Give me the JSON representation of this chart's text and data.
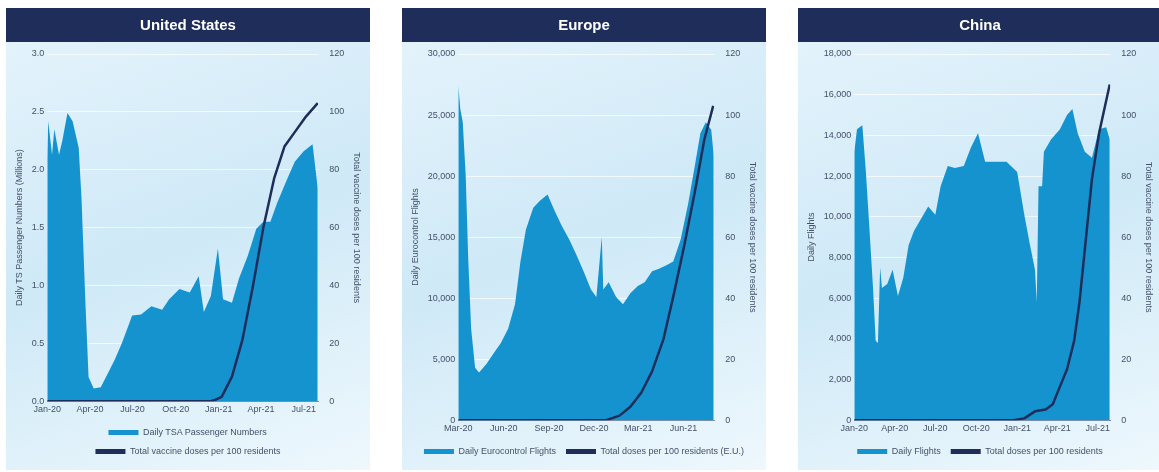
{
  "chart_data": [
    {
      "type": "area",
      "title": "United States",
      "ylabel": "Daily TS Passenger Numbers (Millions)",
      "y2label": "Total vaccine doses per 100 residents",
      "xlim": [
        "2020-01-01",
        "2021-08-01"
      ],
      "xticks": [
        {
          "value": "2020-01-01",
          "label": "Jan-20"
        },
        {
          "value": "2020-04-01",
          "label": "Apr-20"
        },
        {
          "value": "2020-07-01",
          "label": "Jul-20"
        },
        {
          "value": "2020-10-01",
          "label": "Oct-20"
        },
        {
          "value": "2021-01-01",
          "label": "Jan-21"
        },
        {
          "value": "2021-04-01",
          "label": "Apr-21"
        },
        {
          "value": "2021-07-01",
          "label": "Jul-21"
        }
      ],
      "ylim": [
        0,
        3
      ],
      "yticks": [
        {
          "value": 0,
          "label": "0.0"
        },
        {
          "value": 0.5,
          "label": "0.5"
        },
        {
          "value": 1,
          "label": "1.0"
        },
        {
          "value": 1.5,
          "label": "1.5"
        },
        {
          "value": 2,
          "label": "2.0"
        },
        {
          "value": 2.5,
          "label": "2.5"
        },
        {
          "value": 3,
          "label": "3.0"
        }
      ],
      "y2lim": [
        0,
        120
      ],
      "y2ticks": [
        0,
        20,
        40,
        60,
        80,
        100,
        120
      ],
      "grid": "y",
      "legend": "bottom",
      "series": [
        {
          "name": "Daily TSA Passenger Numbers",
          "color": "#1493cf",
          "x": [
            "2020-01-01",
            "2020-01-03",
            "2020-01-11",
            "2020-01-16",
            "2020-01-26",
            "2020-02-02",
            "2020-02-13",
            "2020-02-24",
            "2020-03-08",
            "2020-03-14",
            "2020-03-22",
            "2020-03-29",
            "2020-04-09",
            "2020-04-24",
            "2020-05-09",
            "2020-05-24",
            "2020-06-08",
            "2020-06-19",
            "2020-06-30",
            "2020-07-19",
            "2020-08-10",
            "2020-09-02",
            "2020-09-17",
            "2020-10-09",
            "2020-10-31",
            "2020-11-19",
            "2020-11-30",
            "2020-12-15",
            "2020-12-30",
            "2021-01-10",
            "2021-01-29",
            "2021-02-13",
            "2021-03-04",
            "2021-03-22",
            "2021-04-06",
            "2021-04-21",
            "2021-05-06",
            "2021-05-28",
            "2021-06-12",
            "2021-07-01",
            "2021-07-20",
            "2021-07-31"
          ],
          "values": [
            2.1,
            2.42,
            2.13,
            2.35,
            2.13,
            2.25,
            2.49,
            2.42,
            2.19,
            1.75,
            0.88,
            0.21,
            0.11,
            0.12,
            0.24,
            0.36,
            0.5,
            0.62,
            0.74,
            0.75,
            0.82,
            0.79,
            0.88,
            0.97,
            0.94,
            1.08,
            0.77,
            0.91,
            1.32,
            0.88,
            0.85,
            1.06,
            1.26,
            1.49,
            1.55,
            1.55,
            1.72,
            1.93,
            2.07,
            2.16,
            2.22,
            1.84
          ]
        },
        {
          "name": "Total vaccine doses per 100 residents",
          "type": "line",
          "axis": "y2",
          "color": "#1f2d5a",
          "x": [
            "2020-01-01",
            "2020-12-14",
            "2020-12-22",
            "2021-01-07",
            "2021-01-29",
            "2021-02-20",
            "2021-03-15",
            "2021-04-06",
            "2021-04-29",
            "2021-05-21",
            "2021-06-12",
            "2021-07-04",
            "2021-07-31"
          ],
          "values": [
            0,
            0,
            0.3,
            1.5,
            8.5,
            21,
            40,
            60,
            77,
            88,
            93,
            98,
            103
          ]
        }
      ]
    },
    {
      "type": "area",
      "title": "Europe",
      "ylabel": "Daily Eurocontrol Flights",
      "y2label": "Total vaccine doses per 100 residents",
      "xlim": [
        "2020-03-01",
        "2021-08-02"
      ],
      "xticks": [
        {
          "value": "2020-03-01",
          "label": "Mar-20"
        },
        {
          "value": "2020-06-01",
          "label": "Jun-20"
        },
        {
          "value": "2020-09-01",
          "label": "Sep-20"
        },
        {
          "value": "2020-12-01",
          "label": "Dec-20"
        },
        {
          "value": "2021-03-01",
          "label": "Mar-21"
        },
        {
          "value": "2021-06-01",
          "label": "Jun-21"
        }
      ],
      "ylim": [
        0,
        30000
      ],
      "yticks": [
        0,
        {
          "value": 5000,
          "label": "5,000"
        },
        {
          "value": 10000,
          "label": "10,000"
        },
        {
          "value": 15000,
          "label": "15,000"
        },
        {
          "value": 20000,
          "label": "20,000"
        },
        {
          "value": 25000,
          "label": "25,000"
        },
        {
          "value": 30000,
          "label": "30,000"
        }
      ],
      "y2lim": [
        0,
        120
      ],
      "y2ticks": [
        0,
        20,
        40,
        60,
        80,
        100,
        120
      ],
      "grid": "y",
      "legend": "bottom",
      "series": [
        {
          "name": "Daily Eurocontrol Flights",
          "color": "#1493cf",
          "x": [
            "2020-03-01",
            "2020-03-05",
            "2020-03-10",
            "2020-03-16",
            "2020-03-21",
            "2020-03-27",
            "2020-04-04",
            "2020-04-12",
            "2020-04-27",
            "2020-05-12",
            "2020-05-26",
            "2020-06-10",
            "2020-06-24",
            "2020-07-05",
            "2020-07-16",
            "2020-07-31",
            "2020-08-14",
            "2020-08-29",
            "2020-09-13",
            "2020-09-27",
            "2020-10-12",
            "2020-10-26",
            "2020-11-10",
            "2020-11-25",
            "2020-12-06",
            "2020-12-17",
            "2020-12-20",
            "2020-12-31",
            "2021-01-15",
            "2021-01-29",
            "2021-02-13",
            "2021-02-28",
            "2021-03-14",
            "2021-03-29",
            "2021-04-12",
            "2021-04-27",
            "2021-05-11",
            "2021-05-26",
            "2021-06-10",
            "2021-06-24",
            "2021-07-05",
            "2021-07-16",
            "2021-07-27",
            "2021-08-01"
          ],
          "values": [
            27400,
            25500,
            24400,
            20000,
            13300,
            7500,
            4300,
            3900,
            4600,
            5500,
            6300,
            7500,
            9500,
            13000,
            15600,
            17400,
            18000,
            18500,
            17100,
            15900,
            14800,
            13600,
            12200,
            10700,
            10100,
            15000,
            10700,
            11300,
            10100,
            9500,
            10400,
            11000,
            11300,
            12200,
            12400,
            12700,
            13000,
            14800,
            17700,
            20900,
            23500,
            24400,
            23800,
            21700
          ]
        },
        {
          "name": "Total doses per 100 residents (E.U.)",
          "type": "line",
          "axis": "y2",
          "color": "#1f2d5a",
          "x": [
            "2020-03-01",
            "2020-12-26",
            "2021-01-22",
            "2021-02-13",
            "2021-03-07",
            "2021-03-29",
            "2021-04-21",
            "2021-05-11",
            "2021-06-02",
            "2021-06-24",
            "2021-07-13",
            "2021-07-31"
          ],
          "values": [
            0,
            0,
            1.5,
            4.4,
            9,
            16,
            26.5,
            40.5,
            57,
            75,
            92,
            103
          ]
        }
      ]
    },
    {
      "type": "area",
      "title": "China",
      "ylabel": "Daily Flights",
      "y2label": "Total vaccine doses per 100 residents",
      "xlim": [
        "2020-01-01",
        "2021-07-29"
      ],
      "xticks": [
        {
          "value": "2020-01-01",
          "label": "Jan-20"
        },
        {
          "value": "2020-04-01",
          "label": "Apr-20"
        },
        {
          "value": "2020-07-01",
          "label": "Jul-20"
        },
        {
          "value": "2020-10-01",
          "label": "Oct-20"
        },
        {
          "value": "2021-01-01",
          "label": "Jan-21"
        },
        {
          "value": "2021-04-01",
          "label": "Apr-21"
        },
        {
          "value": "2021-07-01",
          "label": "Jul-21"
        }
      ],
      "ylim": [
        0,
        18000
      ],
      "yticks": [
        0,
        {
          "value": 2000,
          "label": "2,000"
        },
        {
          "value": 4000,
          "label": "4,000"
        },
        {
          "value": 6000,
          "label": "6,000"
        },
        {
          "value": 8000,
          "label": "8,000"
        },
        {
          "value": 10000,
          "label": "10,000"
        },
        {
          "value": 12000,
          "label": "12,000"
        },
        {
          "value": 14000,
          "label": "14,000"
        },
        {
          "value": 16000,
          "label": "16,000"
        },
        {
          "value": 18000,
          "label": "18,000"
        }
      ],
      "y2lim": [
        0,
        120
      ],
      "y2ticks": [
        0,
        20,
        40,
        60,
        80,
        100,
        120
      ],
      "grid": "y",
      "legend": "bottom",
      "series": [
        {
          "name": "Daily Flights",
          "color": "#1493cf",
          "x": [
            "2020-01-01",
            "2020-01-07",
            "2020-01-19",
            "2020-01-27",
            "2020-02-04",
            "2020-02-12",
            "2020-02-18",
            "2020-02-23",
            "2020-02-28",
            "2020-03-03",
            "2020-03-15",
            "2020-03-27",
            "2020-04-08",
            "2020-04-20",
            "2020-05-02",
            "2020-05-14",
            "2020-05-30",
            "2020-06-15",
            "2020-07-01",
            "2020-07-13",
            "2020-07-29",
            "2020-08-14",
            "2020-09-03",
            "2020-09-19",
            "2020-10-05",
            "2020-10-21",
            "2020-11-14",
            "2020-12-08",
            "2021-01-01",
            "2021-01-17",
            "2021-01-29",
            "2021-02-10",
            "2021-02-14",
            "2021-02-18",
            "2021-02-26",
            "2021-03-02",
            "2021-03-18",
            "2021-04-07",
            "2021-04-23",
            "2021-05-05",
            "2021-05-17",
            "2021-06-02",
            "2021-06-18",
            "2021-07-04",
            "2021-07-20",
            "2021-07-28"
          ],
          "values": [
            13200,
            14300,
            14500,
            12200,
            9400,
            6500,
            3900,
            3800,
            7500,
            6500,
            6700,
            7400,
            6100,
            7000,
            8600,
            9300,
            9900,
            10500,
            10100,
            11500,
            12500,
            12400,
            12500,
            13400,
            14100,
            12700,
            12700,
            12700,
            12200,
            10100,
            8700,
            7400,
            5800,
            11500,
            11500,
            13200,
            13800,
            14300,
            15000,
            15300,
            14100,
            13200,
            12900,
            14300,
            14400,
            13800
          ]
        },
        {
          "name": "Total doses per 100 residents",
          "type": "line",
          "axis": "y2",
          "color": "#1f2d5a",
          "x": [
            "2020-01-01",
            "2020-12-24",
            "2021-01-17",
            "2021-02-10",
            "2021-03-06",
            "2021-03-22",
            "2021-04-07",
            "2021-04-23",
            "2021-05-09",
            "2021-05-21",
            "2021-06-02",
            "2021-06-18",
            "2021-07-04",
            "2021-07-28"
          ],
          "values": [
            0,
            0,
            0.6,
            2.9,
            3.5,
            5.2,
            11,
            16.7,
            26,
            38.7,
            56,
            79,
            94,
            110
          ]
        }
      ]
    }
  ]
}
